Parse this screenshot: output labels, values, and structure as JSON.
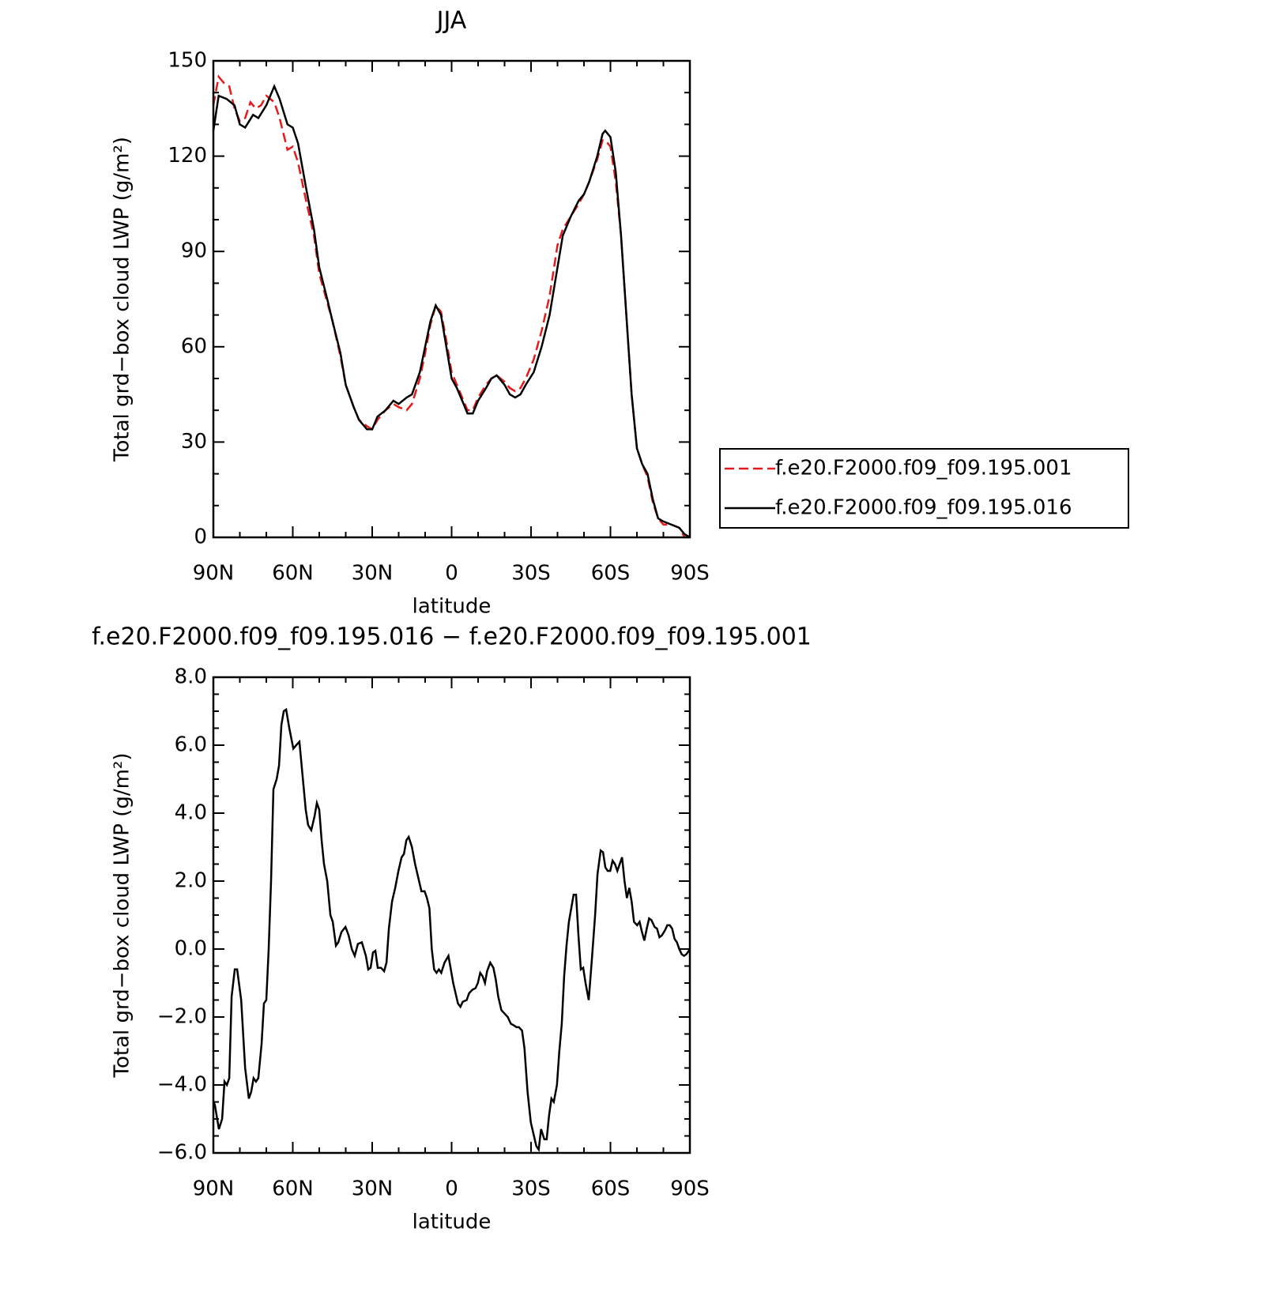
{
  "chart_data": [
    {
      "type": "line",
      "title": "JJA",
      "xlabel": "latitude",
      "ylabel": "Total grd−box cloud LWP (g/m²)",
      "xlim": [
        90,
        -90
      ],
      "ylim": [
        0,
        150
      ],
      "xticks": [
        {
          "value": 90,
          "label": "90N"
        },
        {
          "value": 60,
          "label": "60N"
        },
        {
          "value": 30,
          "label": "30N"
        },
        0,
        {
          "value": -30,
          "label": "30S"
        },
        {
          "value": -60,
          "label": "60S"
        },
        {
          "value": -90,
          "label": "90S"
        }
      ],
      "yticks": [
        0,
        30,
        60,
        90,
        120,
        150
      ],
      "xminorticks": [
        80,
        70,
        50,
        40,
        20,
        10,
        -10,
        -20,
        -40,
        -50,
        -70,
        -80
      ],
      "yminorticks": [
        10,
        20,
        40,
        50,
        70,
        80,
        100,
        110,
        130,
        140
      ],
      "legend": "right",
      "series": [
        {
          "name": "f.e20.F2000.f09_f09.195.001",
          "color": "#e41a1c",
          "dash": true,
          "x": [
            90,
            88,
            86,
            84,
            82,
            80,
            78,
            76,
            74,
            72,
            70,
            67,
            65,
            62,
            60,
            58,
            55,
            52,
            50,
            47,
            45,
            42,
            40,
            37,
            35,
            32,
            30,
            28,
            25,
            22,
            20,
            17,
            15,
            12,
            10,
            8,
            6,
            4,
            2,
            0,
            -2,
            -4,
            -6,
            -8,
            -10,
            -13,
            -15,
            -17,
            -20,
            -22,
            -24,
            -26,
            -28,
            -31,
            -34,
            -37,
            -40,
            -42,
            -45,
            -48,
            -50,
            -52,
            -55,
            -57,
            -58,
            -60,
            -62,
            -64,
            -66,
            -68,
            -70,
            -72,
            -74,
            -76,
            -78,
            -80,
            -83,
            -86,
            -88,
            -90
          ],
          "values": [
            136,
            145,
            143,
            142,
            135,
            131,
            132,
            137,
            135,
            136,
            139,
            137,
            132,
            122,
            123,
            118,
            106,
            95,
            83,
            74,
            68,
            57,
            48,
            41,
            37,
            35,
            34,
            37,
            40,
            42,
            41,
            40,
            42,
            50,
            58,
            67,
            73,
            71,
            62,
            52,
            48,
            44,
            40,
            40,
            44,
            48,
            50,
            51,
            49,
            47,
            46,
            47,
            50,
            56,
            65,
            76,
            92,
            97,
            101,
            105,
            108,
            112,
            119,
            125,
            125,
            123,
            112,
            95,
            70,
            45,
            28,
            23,
            19,
            11,
            6,
            4,
            4,
            3,
            0,
            0
          ]
        },
        {
          "name": "f.e20.F2000.f09_f09.195.016",
          "color": "#000000",
          "dash": false,
          "x": [
            90,
            88,
            85,
            82,
            80,
            78,
            75,
            73,
            70,
            67,
            65,
            62,
            60,
            58,
            55,
            52,
            50,
            47,
            45,
            42,
            40,
            37,
            35,
            32,
            30,
            28,
            25,
            22,
            20,
            17,
            15,
            12,
            10,
            8,
            6,
            4,
            2,
            0,
            -2,
            -4,
            -6,
            -8,
            -10,
            -13,
            -15,
            -17,
            -20,
            -22,
            -24,
            -26,
            -28,
            -31,
            -34,
            -37,
            -40,
            -42,
            -45,
            -48,
            -50,
            -52,
            -55,
            -57,
            -58,
            -60,
            -62,
            -64,
            -66,
            -68,
            -70,
            -72,
            -74,
            -76,
            -78,
            -80,
            -83,
            -86,
            -88,
            -90
          ],
          "values": [
            128,
            139,
            138,
            136,
            130,
            129,
            133,
            132,
            136,
            142,
            138,
            130,
            129,
            124,
            110,
            97,
            85,
            75,
            68,
            58,
            48,
            41,
            37,
            34,
            34,
            38,
            40,
            43,
            42,
            44,
            45,
            52,
            60,
            68,
            73,
            70,
            60,
            50,
            47,
            43,
            39,
            39,
            43,
            47,
            50,
            51,
            48,
            45,
            44,
            45,
            48,
            52,
            60,
            70,
            85,
            95,
            101,
            106,
            108,
            112,
            120,
            127,
            128,
            126,
            115,
            95,
            70,
            45,
            28,
            23,
            20,
            12,
            6,
            5,
            4,
            3,
            1,
            0
          ]
        }
      ]
    },
    {
      "type": "line",
      "title": "f.e20.F2000.f09_f09.195.016 − f.e20.F2000.f09_f09.195.001",
      "xlabel": "latitude",
      "ylabel": "Total grd−box cloud LWP (g/m²)",
      "xlim": [
        90,
        -90
      ],
      "ylim": [
        -6,
        8
      ],
      "xticks": [
        {
          "value": 90,
          "label": "90N"
        },
        {
          "value": 60,
          "label": "60N"
        },
        {
          "value": 30,
          "label": "30N"
        },
        0,
        {
          "value": -30,
          "label": "30S"
        },
        {
          "value": -60,
          "label": "60S"
        },
        {
          "value": -90,
          "label": "90S"
        }
      ],
      "yticks": [
        {
          "value": -6,
          "label": "−6.0"
        },
        {
          "value": -4,
          "label": "−4.0"
        },
        {
          "value": -2,
          "label": "−2.0"
        },
        {
          "value": 0,
          "label": "0.0"
        },
        {
          "value": 2,
          "label": "2.0"
        },
        {
          "value": 4,
          "label": "4.0"
        },
        {
          "value": 6,
          "label": "6.0"
        },
        {
          "value": 8,
          "label": "8.0"
        }
      ],
      "xminorticks": [
        80,
        70,
        50,
        40,
        20,
        10,
        -10,
        -20,
        -40,
        -50,
        -70,
        -80
      ],
      "yminorticks": [
        -5.5,
        -5,
        -4.5,
        -3.5,
        -3,
        -2.5,
        -1.5,
        -1,
        -0.5,
        0.5,
        1,
        1.5,
        2.5,
        3,
        3.5,
        4.5,
        5,
        5.5,
        6.5,
        7,
        7.5
      ],
      "series": [
        {
          "color": "#000000",
          "dash": false,
          "x": [
            90,
            89.4,
            87.9,
            86.7,
            85.8,
            84.9,
            84,
            83.1,
            81.9,
            81,
            79.5,
            78,
            76.6,
            75.7,
            74.8,
            73.9,
            73,
            71.8,
            70.9,
            70,
            69.1,
            68.2,
            67.3,
            66.1,
            65.2,
            64.3,
            63.4,
            62.5,
            61.3,
            59.8,
            58.7,
            57.5,
            56.3,
            55.1,
            54.2,
            53,
            51.8,
            50.9,
            50,
            49.1,
            48.2,
            47,
            45.8,
            44.9,
            43.7,
            42.8,
            41.6,
            40.1,
            38.9,
            37.7,
            36.6,
            35.4,
            33.9,
            32.4,
            31.5,
            30.6,
            29.7,
            28.8,
            27.9,
            26.7,
            25.5,
            24.6,
            23.7,
            22.5,
            21.3,
            20.1,
            18.9,
            18,
            17.1,
            16.2,
            15,
            13.8,
            12.6,
            11.4,
            10.2,
            9.3,
            8.4,
            7.5,
            6.6,
            5.7,
            4.8,
            3.9,
            2.7,
            1.2,
            0.3,
            -0.6,
            -1.5,
            -2.4,
            -3.3,
            -4.2,
            -5.7,
            -6.6,
            -7.8,
            -9,
            -9.9,
            -10.8,
            -11.7,
            -12.6,
            -13.4,
            -14.6,
            -15.8,
            -16.7,
            -17.6,
            -18.8,
            -20,
            -21.2,
            -22.4,
            -23.6,
            -24.5,
            -25.4,
            -26.6,
            -27.5,
            -28.7,
            -29.9,
            -31.1,
            -32,
            -32.9,
            -33.8,
            -35,
            -35.9,
            -36.8,
            -37.7,
            -38.6,
            -39.8,
            -40.7,
            -41.6,
            -42.5,
            -43.4,
            -44.3,
            -45.2,
            -46.1,
            -47,
            -47.9,
            -48.8,
            -49.7,
            -50.6,
            -51.8,
            -53,
            -54.2,
            -55.1,
            -56.3,
            -57.2,
            -58.1,
            -59,
            -59.9,
            -60.8,
            -61.7,
            -62.6,
            -63.5,
            -64.4,
            -65.3,
            -66.2,
            -67.1,
            -68,
            -68.9,
            -70.1,
            -71,
            -71.9,
            -72.8,
            -73.7,
            -74.6,
            -75.5,
            -76.7,
            -77.6,
            -78.5,
            -79.4,
            -80.6,
            -81.5,
            -82.4,
            -83.3,
            -84.2,
            -85.1,
            -86,
            -86.9,
            -87.8,
            -88.7,
            -89.6,
            -90
          ],
          "values": [
            -4.47,
            -4.6,
            -5.3,
            -5.0,
            -3.9,
            -4.0,
            -3.8,
            -1.4,
            -0.6,
            -0.6,
            -1.5,
            -3.5,
            -4.4,
            -4.2,
            -3.8,
            -3.9,
            -3.8,
            -2.8,
            -1.6,
            -1.5,
            0.0,
            2.0,
            4.7,
            5.0,
            5.4,
            6.6,
            7.0,
            7.05,
            6.5,
            5.9,
            6.0,
            6.1,
            5.1,
            4.1,
            3.65,
            3.5,
            3.9,
            4.3,
            4.1,
            3.2,
            2.5,
            2.0,
            1.0,
            0.8,
            0.1,
            0.2,
            0.5,
            0.65,
            0.4,
            0.0,
            -0.2,
            0.15,
            0.2,
            -0.2,
            -0.6,
            -0.55,
            -0.1,
            -0.05,
            -0.55,
            -0.55,
            -0.65,
            -0.4,
            0.6,
            1.4,
            1.8,
            2.3,
            2.7,
            2.8,
            3.2,
            3.3,
            3.0,
            2.5,
            2.1,
            1.7,
            1.7,
            1.5,
            1.2,
            0.0,
            -0.6,
            -0.7,
            -0.6,
            -0.7,
            -0.4,
            -0.2,
            -0.6,
            -1.0,
            -1.3,
            -1.6,
            -1.7,
            -1.55,
            -1.5,
            -1.3,
            -1.2,
            -1.15,
            -1.0,
            -0.7,
            -0.8,
            -1.0,
            -0.65,
            -0.4,
            -0.55,
            -0.9,
            -1.4,
            -1.8,
            -1.9,
            -2.0,
            -2.2,
            -2.25,
            -2.3,
            -2.3,
            -2.4,
            -2.9,
            -4.2,
            -5.1,
            -5.5,
            -5.8,
            -5.9,
            -5.3,
            -5.6,
            -5.6,
            -4.9,
            -4.4,
            -4.5,
            -4.0,
            -3.0,
            -2.2,
            -0.8,
            0.1,
            0.8,
            1.2,
            1.6,
            1.6,
            0.4,
            -0.6,
            -0.55,
            -1.0,
            -1.5,
            -0.3,
            1.0,
            2.2,
            2.9,
            2.85,
            2.4,
            2.3,
            2.3,
            2.6,
            2.5,
            2.3,
            2.5,
            2.7,
            2.0,
            1.5,
            1.8,
            1.4,
            0.8,
            0.7,
            0.8,
            0.5,
            0.25,
            0.6,
            0.9,
            0.85,
            0.65,
            0.6,
            0.35,
            0.4,
            0.55,
            0.7,
            0.7,
            0.6,
            0.3,
            0.2,
            0.0,
            -0.15,
            -0.2,
            -0.15,
            -0.05,
            0
          ]
        }
      ]
    }
  ]
}
